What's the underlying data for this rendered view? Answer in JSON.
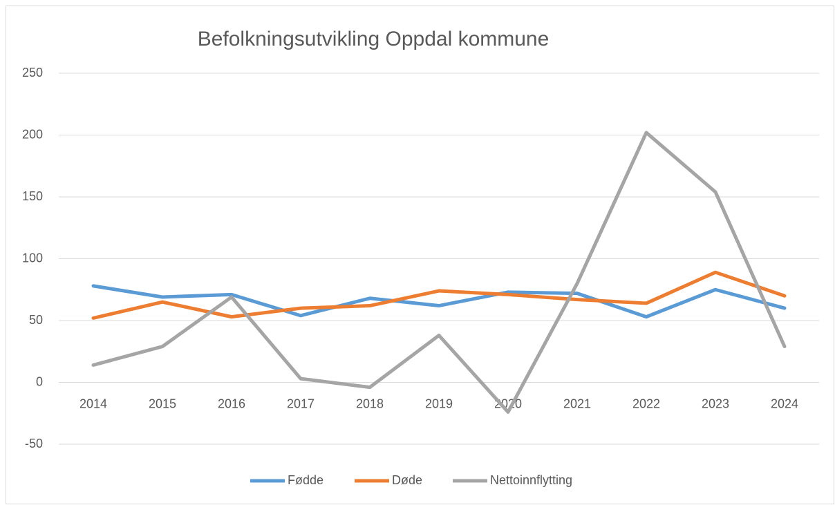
{
  "chart_data": {
    "type": "line",
    "title": "Befolkningsutvikling Oppdal kommune",
    "categories": [
      "2014",
      "2015",
      "2016",
      "2017",
      "2018",
      "2019",
      "2020",
      "2021",
      "2022",
      "2023",
      "2024"
    ],
    "series": [
      {
        "name": "Fødde",
        "color": "#5b9bd5",
        "values": [
          78,
          69,
          71,
          54,
          68,
          62,
          73,
          72,
          53,
          75,
          60
        ]
      },
      {
        "name": "Døde",
        "color": "#ed7d31",
        "values": [
          52,
          65,
          53,
          60,
          62,
          74,
          71,
          67,
          64,
          89,
          70
        ]
      },
      {
        "name": "Nettoinnflytting",
        "color": "#a5a5a5",
        "values": [
          14,
          29,
          69,
          3,
          -4,
          38,
          -24,
          80,
          202,
          154,
          29
        ]
      }
    ],
    "ylim": [
      -50,
      250
    ],
    "yticks": [
      -50,
      0,
      50,
      100,
      150,
      200,
      250
    ],
    "grid": true,
    "legend": "bottom"
  }
}
